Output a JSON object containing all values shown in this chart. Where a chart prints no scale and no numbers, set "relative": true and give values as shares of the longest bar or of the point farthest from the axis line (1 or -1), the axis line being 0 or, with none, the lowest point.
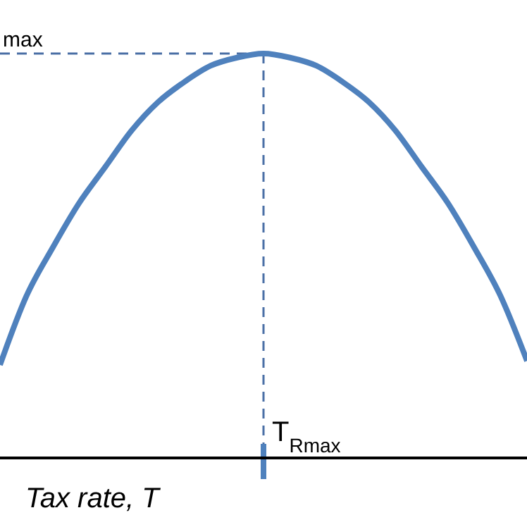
{
  "chart_data": {
    "type": "line",
    "relative": true,
    "xlabel": "Tax rate, T",
    "categories": [
      null,
      null,
      null,
      null,
      null,
      null,
      null,
      null,
      null,
      null,
      null,
      null,
      null,
      null,
      null,
      null,
      null,
      null,
      null,
      null,
      null
    ],
    "series": [
      {
        "color": "#4f81bd",
        "values": [
          0.23,
          0.4,
          0.52,
          0.63,
          0.72,
          0.81,
          0.88,
          0.93,
          0.97,
          0.99,
          1,
          0.99,
          0.97,
          0.93,
          0.88,
          0.81,
          0.72,
          0.63,
          0.52,
          0.4,
          0.24
        ]
      }
    ],
    "ref_lines": [
      {
        "axis": "y",
        "value": 1,
        "label": "max",
        "line_style": "dashed"
      }
    ],
    "annotations": [
      "T$_{Rmax}$"
    ],
    "line_style": "solid"
  }
}
